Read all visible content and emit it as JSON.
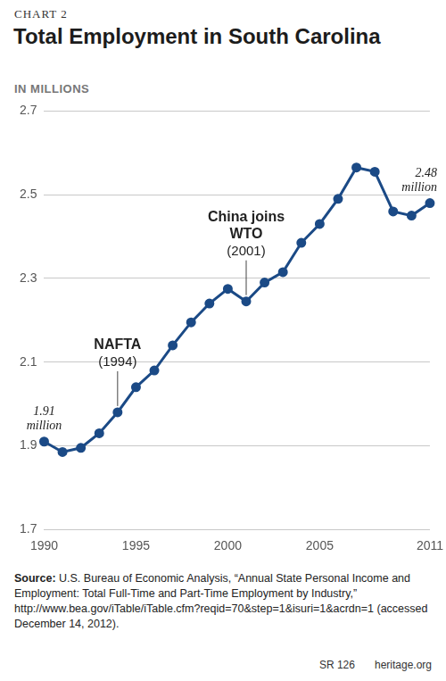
{
  "chart_data": {
    "type": "line",
    "label": "CHART 2",
    "title": "Total Employment in South Carolina",
    "subtitle": "IN MILLIONS",
    "x": [
      1990,
      1991,
      1992,
      1993,
      1994,
      1995,
      1996,
      1997,
      1998,
      1999,
      2000,
      2001,
      2002,
      2003,
      2004,
      2005,
      2006,
      2007,
      2008,
      2009,
      2010,
      2011
    ],
    "values": [
      1.91,
      1.885,
      1.895,
      1.93,
      1.98,
      2.04,
      2.08,
      2.14,
      2.195,
      2.24,
      2.275,
      2.245,
      2.29,
      2.315,
      2.385,
      2.43,
      2.49,
      2.565,
      2.555,
      2.46,
      2.45,
      2.48
    ],
    "color": "#1b4a86",
    "marker": "circle",
    "xlim": [
      1990,
      2011
    ],
    "xticks": [
      1990,
      1995,
      2000,
      2005,
      2011
    ],
    "ylim": [
      1.7,
      2.7
    ],
    "yticks": [
      1.7,
      1.9,
      2.1,
      2.3,
      2.5,
      2.7
    ],
    "grid": true,
    "annotations": [
      {
        "lines": [
          "1.91",
          "million"
        ],
        "x": 1990,
        "y": 1.91
      },
      {
        "lines": [
          "2.48",
          "million"
        ],
        "x": 2011,
        "y": 2.48
      },
      {
        "lines": [
          "NAFTA"
        ],
        "note": "(1994)",
        "x": 1994
      },
      {
        "lines": [
          "China joins",
          "WTO"
        ],
        "note": "(2001)",
        "x": 2001
      }
    ],
    "source_label": "Source:",
    "source": "U.S. Bureau of Economic Analysis, “Annual State Personal Income and Employment: Total Full-Time and Part-Time Employment by Industry,” http://www.bea.gov/iTable/iTable.cfm?reqid=70&step=1&isuri=1&acrdn=1 (accessed December 14, 2012).",
    "footer": [
      "SR 126",
      "heritage.org"
    ]
  }
}
